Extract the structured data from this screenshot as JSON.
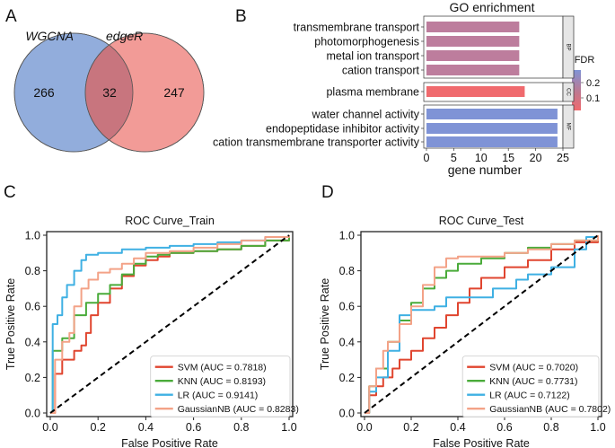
{
  "panel_labels": [
    "A",
    "B",
    "C",
    "D"
  ],
  "colors": {
    "wgcna": "#7f9fd6",
    "edger": "#f08a85",
    "overlap": "#c8757e",
    "svm": "#e0452f",
    "knn": "#4aab3a",
    "lr": "#3fb0e3",
    "gnb": "#f3a287",
    "diag": "#000000",
    "fdr_low": "#f06a6e",
    "fdr_high": "#7f93d6"
  },
  "chart_data": [
    {
      "type": "venn",
      "sets": [
        {
          "name": "WGCNA",
          "only": 266
        },
        {
          "name": "edgeR",
          "only": 247
        }
      ],
      "intersection": 32
    },
    {
      "type": "bar",
      "orientation": "horizontal",
      "title": "GO enrichment",
      "xlabel": "gene number",
      "xlim": [
        0,
        25
      ],
      "xticks": [
        0,
        5,
        10,
        15,
        20,
        25
      ],
      "legend_title": "FDR",
      "legend_ticks": [
        0.2,
        0.1
      ],
      "groups": [
        {
          "name": "BP",
          "terms": [
            {
              "label": "transmembrane transport",
              "value": 17,
              "fdr": 0.15
            },
            {
              "label": "photomorphogenesis",
              "value": 17,
              "fdr": 0.15
            },
            {
              "label": "metal ion transport",
              "value": 17,
              "fdr": 0.15
            },
            {
              "label": "cation transport",
              "value": 17,
              "fdr": 0.15
            }
          ]
        },
        {
          "name": "CC",
          "terms": [
            {
              "label": "plasma membrane",
              "value": 18,
              "fdr": 0.05
            }
          ]
        },
        {
          "name": "MF",
          "terms": [
            {
              "label": "water channel activity",
              "value": 24,
              "fdr": 0.27
            },
            {
              "label": "endopeptidase inhibitor activity",
              "value": 24,
              "fdr": 0.27
            },
            {
              "label": "cation transmembrane transporter activity",
              "value": 24,
              "fdr": 0.27
            }
          ]
        }
      ]
    },
    {
      "type": "line",
      "title": "ROC Curve_Train",
      "xlabel": "False Positive Rate",
      "ylabel": "True Positive Rate",
      "xlim": [
        0,
        1
      ],
      "ylim": [
        0,
        1
      ],
      "ticks": [
        "0.0",
        "0.2",
        "0.4",
        "0.6",
        "0.8",
        "1.0"
      ],
      "legend_position": "lower-right",
      "series": [
        {
          "key": "svm",
          "name": "SVM (AUC = 0.7818)",
          "points": [
            [
              0,
              0
            ],
            [
              0.02,
              0.22
            ],
            [
              0.05,
              0.3
            ],
            [
              0.1,
              0.35
            ],
            [
              0.13,
              0.38
            ],
            [
              0.15,
              0.45
            ],
            [
              0.17,
              0.55
            ],
            [
              0.2,
              0.62
            ],
            [
              0.25,
              0.7
            ],
            [
              0.3,
              0.77
            ],
            [
              0.35,
              0.83
            ],
            [
              0.4,
              0.86
            ],
            [
              0.45,
              0.88
            ],
            [
              0.5,
              0.9
            ],
            [
              0.6,
              0.91
            ],
            [
              0.7,
              0.92
            ],
            [
              0.8,
              0.94
            ],
            [
              0.9,
              0.97
            ],
            [
              1,
              1
            ]
          ]
        },
        {
          "key": "knn",
          "name": "KNN (AUC = 0.8193)",
          "points": [
            [
              0,
              0
            ],
            [
              0.01,
              0.35
            ],
            [
              0.05,
              0.42
            ],
            [
              0.1,
              0.55
            ],
            [
              0.15,
              0.62
            ],
            [
              0.2,
              0.67
            ],
            [
              0.25,
              0.72
            ],
            [
              0.3,
              0.78
            ],
            [
              0.35,
              0.84
            ],
            [
              0.4,
              0.88
            ],
            [
              0.45,
              0.89
            ],
            [
              0.5,
              0.9
            ],
            [
              0.6,
              0.91
            ],
            [
              0.7,
              0.92
            ],
            [
              0.8,
              0.94
            ],
            [
              0.9,
              0.97
            ],
            [
              1,
              1
            ]
          ]
        },
        {
          "key": "lr",
          "name": "LR (AUC = 0.9141)",
          "points": [
            [
              0,
              0
            ],
            [
              0.01,
              0.5
            ],
            [
              0.03,
              0.55
            ],
            [
              0.05,
              0.65
            ],
            [
              0.07,
              0.72
            ],
            [
              0.1,
              0.8
            ],
            [
              0.13,
              0.86
            ],
            [
              0.15,
              0.89
            ],
            [
              0.2,
              0.9
            ],
            [
              0.3,
              0.92
            ],
            [
              0.4,
              0.93
            ],
            [
              0.5,
              0.94
            ],
            [
              0.6,
              0.95
            ],
            [
              0.7,
              0.96
            ],
            [
              0.8,
              0.97
            ],
            [
              0.9,
              0.99
            ],
            [
              1,
              1
            ]
          ]
        },
        {
          "key": "gnb",
          "name": "GaussianNB (AUC = 0.8283)",
          "points": [
            [
              0,
              0
            ],
            [
              0.02,
              0.3
            ],
            [
              0.05,
              0.4
            ],
            [
              0.08,
              0.45
            ],
            [
              0.1,
              0.6
            ],
            [
              0.13,
              0.7
            ],
            [
              0.16,
              0.75
            ],
            [
              0.2,
              0.79
            ],
            [
              0.25,
              0.81
            ],
            [
              0.3,
              0.84
            ],
            [
              0.35,
              0.87
            ],
            [
              0.4,
              0.9
            ],
            [
              0.5,
              0.91
            ],
            [
              0.6,
              0.93
            ],
            [
              0.7,
              0.95
            ],
            [
              0.8,
              0.97
            ],
            [
              0.9,
              0.99
            ],
            [
              1,
              1
            ]
          ]
        }
      ]
    },
    {
      "type": "line",
      "title": "ROC Curve_Test",
      "xlabel": "False Positive Rate",
      "ylabel": "True Positive Rate",
      "xlim": [
        0,
        1
      ],
      "ylim": [
        0,
        1
      ],
      "ticks": [
        "0.0",
        "0.2",
        "0.4",
        "0.6",
        "0.8",
        "1.0"
      ],
      "legend_position": "lower-right",
      "series": [
        {
          "key": "svm",
          "name": "SVM (AUC = 0.7020)",
          "points": [
            [
              0,
              0
            ],
            [
              0.02,
              0.1
            ],
            [
              0.05,
              0.15
            ],
            [
              0.08,
              0.2
            ],
            [
              0.12,
              0.25
            ],
            [
              0.15,
              0.3
            ],
            [
              0.2,
              0.35
            ],
            [
              0.25,
              0.42
            ],
            [
              0.3,
              0.48
            ],
            [
              0.35,
              0.55
            ],
            [
              0.4,
              0.62
            ],
            [
              0.45,
              0.7
            ],
            [
              0.5,
              0.76
            ],
            [
              0.6,
              0.82
            ],
            [
              0.7,
              0.86
            ],
            [
              0.8,
              0.92
            ],
            [
              0.9,
              0.96
            ],
            [
              1,
              1
            ]
          ]
        },
        {
          "key": "knn",
          "name": "KNN (AUC = 0.7731)",
          "points": [
            [
              0,
              0
            ],
            [
              0.02,
              0.15
            ],
            [
              0.05,
              0.25
            ],
            [
              0.1,
              0.4
            ],
            [
              0.15,
              0.52
            ],
            [
              0.2,
              0.62
            ],
            [
              0.25,
              0.7
            ],
            [
              0.3,
              0.76
            ],
            [
              0.35,
              0.8
            ],
            [
              0.4,
              0.84
            ],
            [
              0.5,
              0.87
            ],
            [
              0.6,
              0.9
            ],
            [
              0.7,
              0.93
            ],
            [
              0.8,
              0.95
            ],
            [
              0.9,
              0.97
            ],
            [
              1,
              1
            ]
          ]
        },
        {
          "key": "lr",
          "name": "LR (AUC = 0.7122)",
          "points": [
            [
              0,
              0
            ],
            [
              0.02,
              0.12
            ],
            [
              0.05,
              0.2
            ],
            [
              0.1,
              0.35
            ],
            [
              0.15,
              0.55
            ],
            [
              0.2,
              0.58
            ],
            [
              0.25,
              0.58
            ],
            [
              0.3,
              0.6
            ],
            [
              0.35,
              0.65
            ],
            [
              0.4,
              0.65
            ],
            [
              0.45,
              0.65
            ],
            [
              0.5,
              0.65
            ],
            [
              0.55,
              0.7
            ],
            [
              0.6,
              0.7
            ],
            [
              0.65,
              0.75
            ],
            [
              0.7,
              0.78
            ],
            [
              0.8,
              0.82
            ],
            [
              0.9,
              0.92
            ],
            [
              0.95,
              0.99
            ],
            [
              1,
              1
            ]
          ]
        },
        {
          "key": "gnb",
          "name": "GaussianNB (AUC = 0.7802)",
          "points": [
            [
              0,
              0
            ],
            [
              0.02,
              0.15
            ],
            [
              0.05,
              0.25
            ],
            [
              0.08,
              0.35
            ],
            [
              0.1,
              0.4
            ],
            [
              0.15,
              0.5
            ],
            [
              0.2,
              0.6
            ],
            [
              0.25,
              0.72
            ],
            [
              0.3,
              0.82
            ],
            [
              0.35,
              0.87
            ],
            [
              0.4,
              0.88
            ],
            [
              0.5,
              0.88
            ],
            [
              0.6,
              0.9
            ],
            [
              0.7,
              0.92
            ],
            [
              0.8,
              0.95
            ],
            [
              0.9,
              0.97
            ],
            [
              1,
              1
            ]
          ]
        }
      ]
    }
  ]
}
